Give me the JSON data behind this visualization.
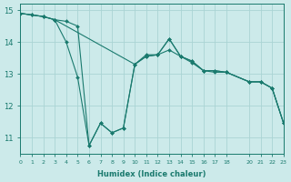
{
  "xlabel": "Humidex (Indice chaleur)",
  "ylabel": "",
  "bg_color": "#cceaea",
  "grid_color": "#aad4d4",
  "line_color": "#1a7a6e",
  "line1": {
    "x": [
      0,
      1,
      2,
      3,
      10,
      11,
      12,
      13,
      14,
      15,
      16,
      17,
      18,
      20,
      21,
      22,
      23
    ],
    "y": [
      14.9,
      14.85,
      14.8,
      14.7,
      13.3,
      13.55,
      13.6,
      13.75,
      13.55,
      13.4,
      13.1,
      13.1,
      13.05,
      12.75,
      12.75,
      12.55,
      11.45
    ]
  },
  "line2": {
    "x": [
      0,
      2,
      3,
      4,
      5,
      6,
      7,
      8,
      9,
      10,
      11,
      12,
      13,
      14,
      15,
      16,
      17,
      18,
      20,
      21,
      22,
      23
    ],
    "y": [
      14.9,
      14.8,
      14.7,
      14.0,
      12.9,
      10.75,
      11.45,
      11.15,
      11.3,
      13.3,
      13.6,
      13.6,
      14.1,
      13.55,
      13.35,
      13.1,
      13.05,
      13.05,
      12.75,
      12.75,
      12.55,
      11.45
    ]
  },
  "line3": {
    "x": [
      0,
      1,
      2,
      3,
      4,
      5,
      6,
      7,
      8,
      9,
      10,
      11,
      12,
      13,
      14,
      15,
      16,
      17,
      18,
      20,
      21,
      22,
      23
    ],
    "y": [
      14.9,
      14.85,
      14.8,
      14.7,
      14.65,
      14.5,
      10.75,
      11.45,
      11.15,
      11.3,
      13.3,
      13.55,
      13.6,
      14.1,
      13.55,
      13.4,
      13.1,
      13.1,
      13.05,
      12.75,
      12.75,
      12.55,
      11.45
    ]
  },
  "xlim": [
    0,
    23
  ],
  "ylim": [
    10.5,
    15.2
  ],
  "xticks": [
    0,
    1,
    2,
    3,
    4,
    5,
    6,
    7,
    8,
    9,
    10,
    11,
    12,
    13,
    14,
    15,
    16,
    17,
    18,
    20,
    21,
    22,
    23
  ],
  "xtick_labels": [
    "0",
    "1",
    "2",
    "3",
    "4",
    "5",
    "6",
    "7",
    "8",
    "9",
    "10",
    "11",
    "12",
    "13",
    "14",
    "15",
    "16",
    "17",
    "18",
    "20",
    "21",
    "22",
    "23"
  ],
  "yticks": [
    11,
    12,
    13,
    14,
    15
  ],
  "markersize": 2.0
}
